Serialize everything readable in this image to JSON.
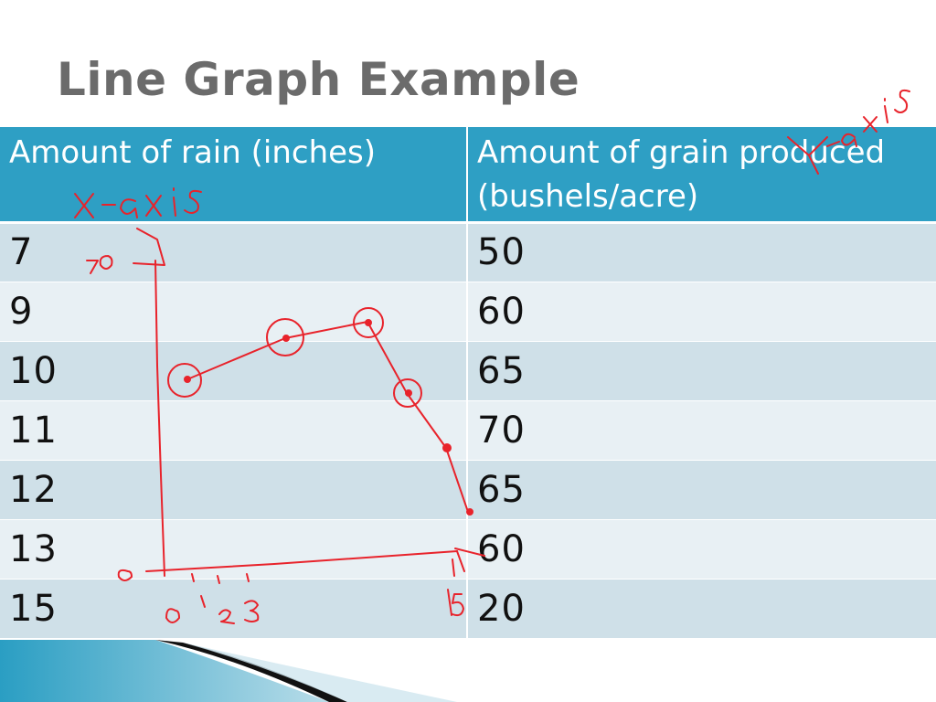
{
  "title": "Line Graph Example",
  "table": {
    "headers": [
      "Amount of rain (inches)",
      "Amount of grain produced (bushels/acre)"
    ],
    "rows": [
      [
        "7",
        "50"
      ],
      [
        "9",
        "60"
      ],
      [
        "10",
        "65"
      ],
      [
        "11",
        "70"
      ],
      [
        "12",
        "65"
      ],
      [
        "13",
        "60"
      ],
      [
        "15",
        "20"
      ]
    ]
  },
  "colors": {
    "header": "#2e9fc4",
    "row_odd": "#cfe0e8",
    "row_even": "#e8f0f4",
    "ink": "#e8232b"
  }
}
